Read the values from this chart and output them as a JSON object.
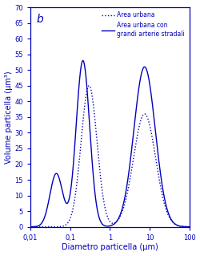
{
  "title_label": "b",
  "xlabel": "Diametro particella (μm)",
  "ylabel": "Volume particella (μm³)",
  "ylim": [
    0,
    70
  ],
  "yticks": [
    0,
    5,
    10,
    15,
    20,
    25,
    30,
    35,
    40,
    45,
    50,
    55,
    60,
    65,
    70
  ],
  "xticks": [
    0.01,
    0.1,
    1,
    10,
    100
  ],
  "xtick_labels": [
    "0,01",
    "0,1",
    "1",
    "10",
    "100"
  ],
  "color": "#0000bb",
  "legend_dotted": "Area urbana",
  "legend_solid": "Area urbana con\ngrandi arterie stradali",
  "background": "#ffffff",
  "figsize": [
    2.5,
    3.19
  ],
  "dpi": 100
}
